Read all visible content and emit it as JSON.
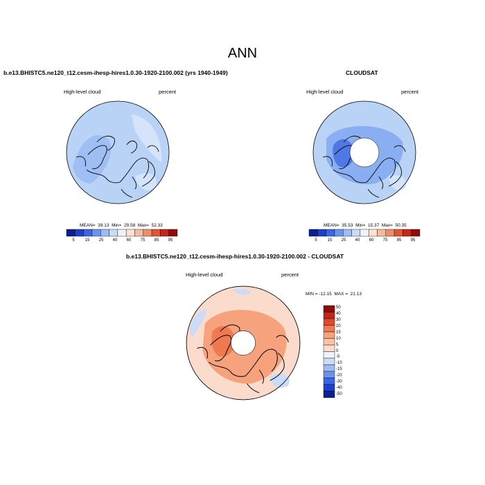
{
  "title": "ANN",
  "panels": [
    {
      "id": "model",
      "title": "b.e13.BHISTC5.ne120_t12.cesm-ihesp-hires1.0.30-1920-2100.002 (yrs 1940-1949)",
      "left_label": "High-level cloud",
      "right_label": "percent",
      "stats": "MEAN=  39.13  Min=  29.58  Max=  52.33",
      "base_color": "#b9d3f7"
    },
    {
      "id": "obs",
      "title": "CLOUDSAT",
      "left_label": "High-level cloud",
      "right_label": "percent",
      "stats": "MEAN=  35.53  Min=  15.37  Max=  50.35",
      "base_color": "#9fbef4"
    },
    {
      "id": "diff",
      "title": "b.e13.BHISTC5.ne120_t12.cesm-ihesp-hires1.0.30-1920-2100.002 - CLOUDSAT",
      "left_label": "High-level cloud",
      "right_label": "percent",
      "stats": "MIN = -12.15  MAX =  21.13",
      "base_color": "#f8c1a5"
    }
  ],
  "colorbar_abs": {
    "ticks": [
      "5",
      "15",
      "25",
      "40",
      "60",
      "75",
      "85",
      "95"
    ],
    "colors": [
      "#0b1f8f",
      "#1d3fcf",
      "#3a66e6",
      "#6b93ee",
      "#9dbcf4",
      "#c9dcf8",
      "#eef3fb",
      "#fbe2d3",
      "#f6bca0",
      "#ef8c6a",
      "#de5636",
      "#c2281a",
      "#8e0c0c"
    ]
  },
  "colorbar_diff": {
    "ticks": [
      "50",
      "40",
      "30",
      "20",
      "15",
      "10",
      "5",
      "0",
      "-5",
      "-10",
      "-15",
      "-20",
      "-30",
      "-40",
      "-50"
    ],
    "colors": [
      "#8e0c0c",
      "#c2281a",
      "#de4a2c",
      "#ef7a52",
      "#f6a27c",
      "#f9c3a9",
      "#fbdccc",
      "#eef3fb",
      "#c9dcf8",
      "#9dbcf4",
      "#6b93ee",
      "#3a66e6",
      "#1d3fcf",
      "#0b1f8f"
    ]
  }
}
